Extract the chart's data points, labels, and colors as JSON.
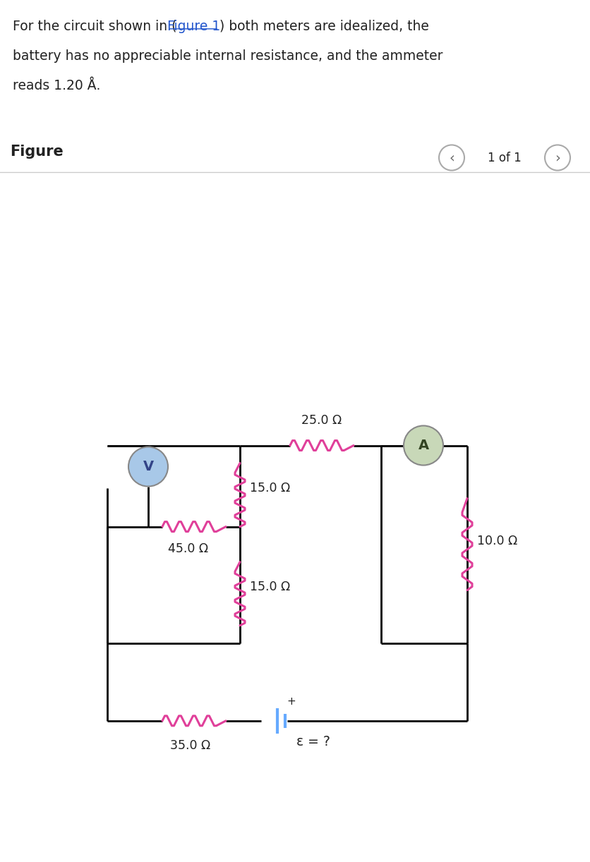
{
  "bg_color_top": "#e8f4f8",
  "bg_color_main": "#ffffff",
  "text_color": "#222222",
  "link_color": "#2255cc",
  "resistor_color": "#e0409a",
  "wire_color": "#000000",
  "battery_color": "#66aaff",
  "header_line1a": "For the circuit shown in (",
  "header_link": "Figure 1",
  "header_line1b": ") both meters are idealized, the",
  "header_line2": "battery has no appreciable internal resistance, and the ammeter",
  "header_line3": "reads 1.20 Å.",
  "figure_label": "Figure",
  "page_label": "1 of 1",
  "r1_label": "25.0 Ω",
  "r2_label": "15.0 Ω",
  "r3_label": "15.0 Ω",
  "r4_label": "45.0 Ω",
  "r5_label": "35.0 Ω",
  "r6_label": "10.0 Ω",
  "emf_label": "ε = ?",
  "voltmeter_label": "V",
  "ammeter_label": "A",
  "voltmeter_fill": "#a8c8e8",
  "ammeter_fill": "#c8d8b8",
  "meter_edge": "#888888",
  "nav_edge": "#aaaaaa",
  "sep_color": "#cccccc"
}
